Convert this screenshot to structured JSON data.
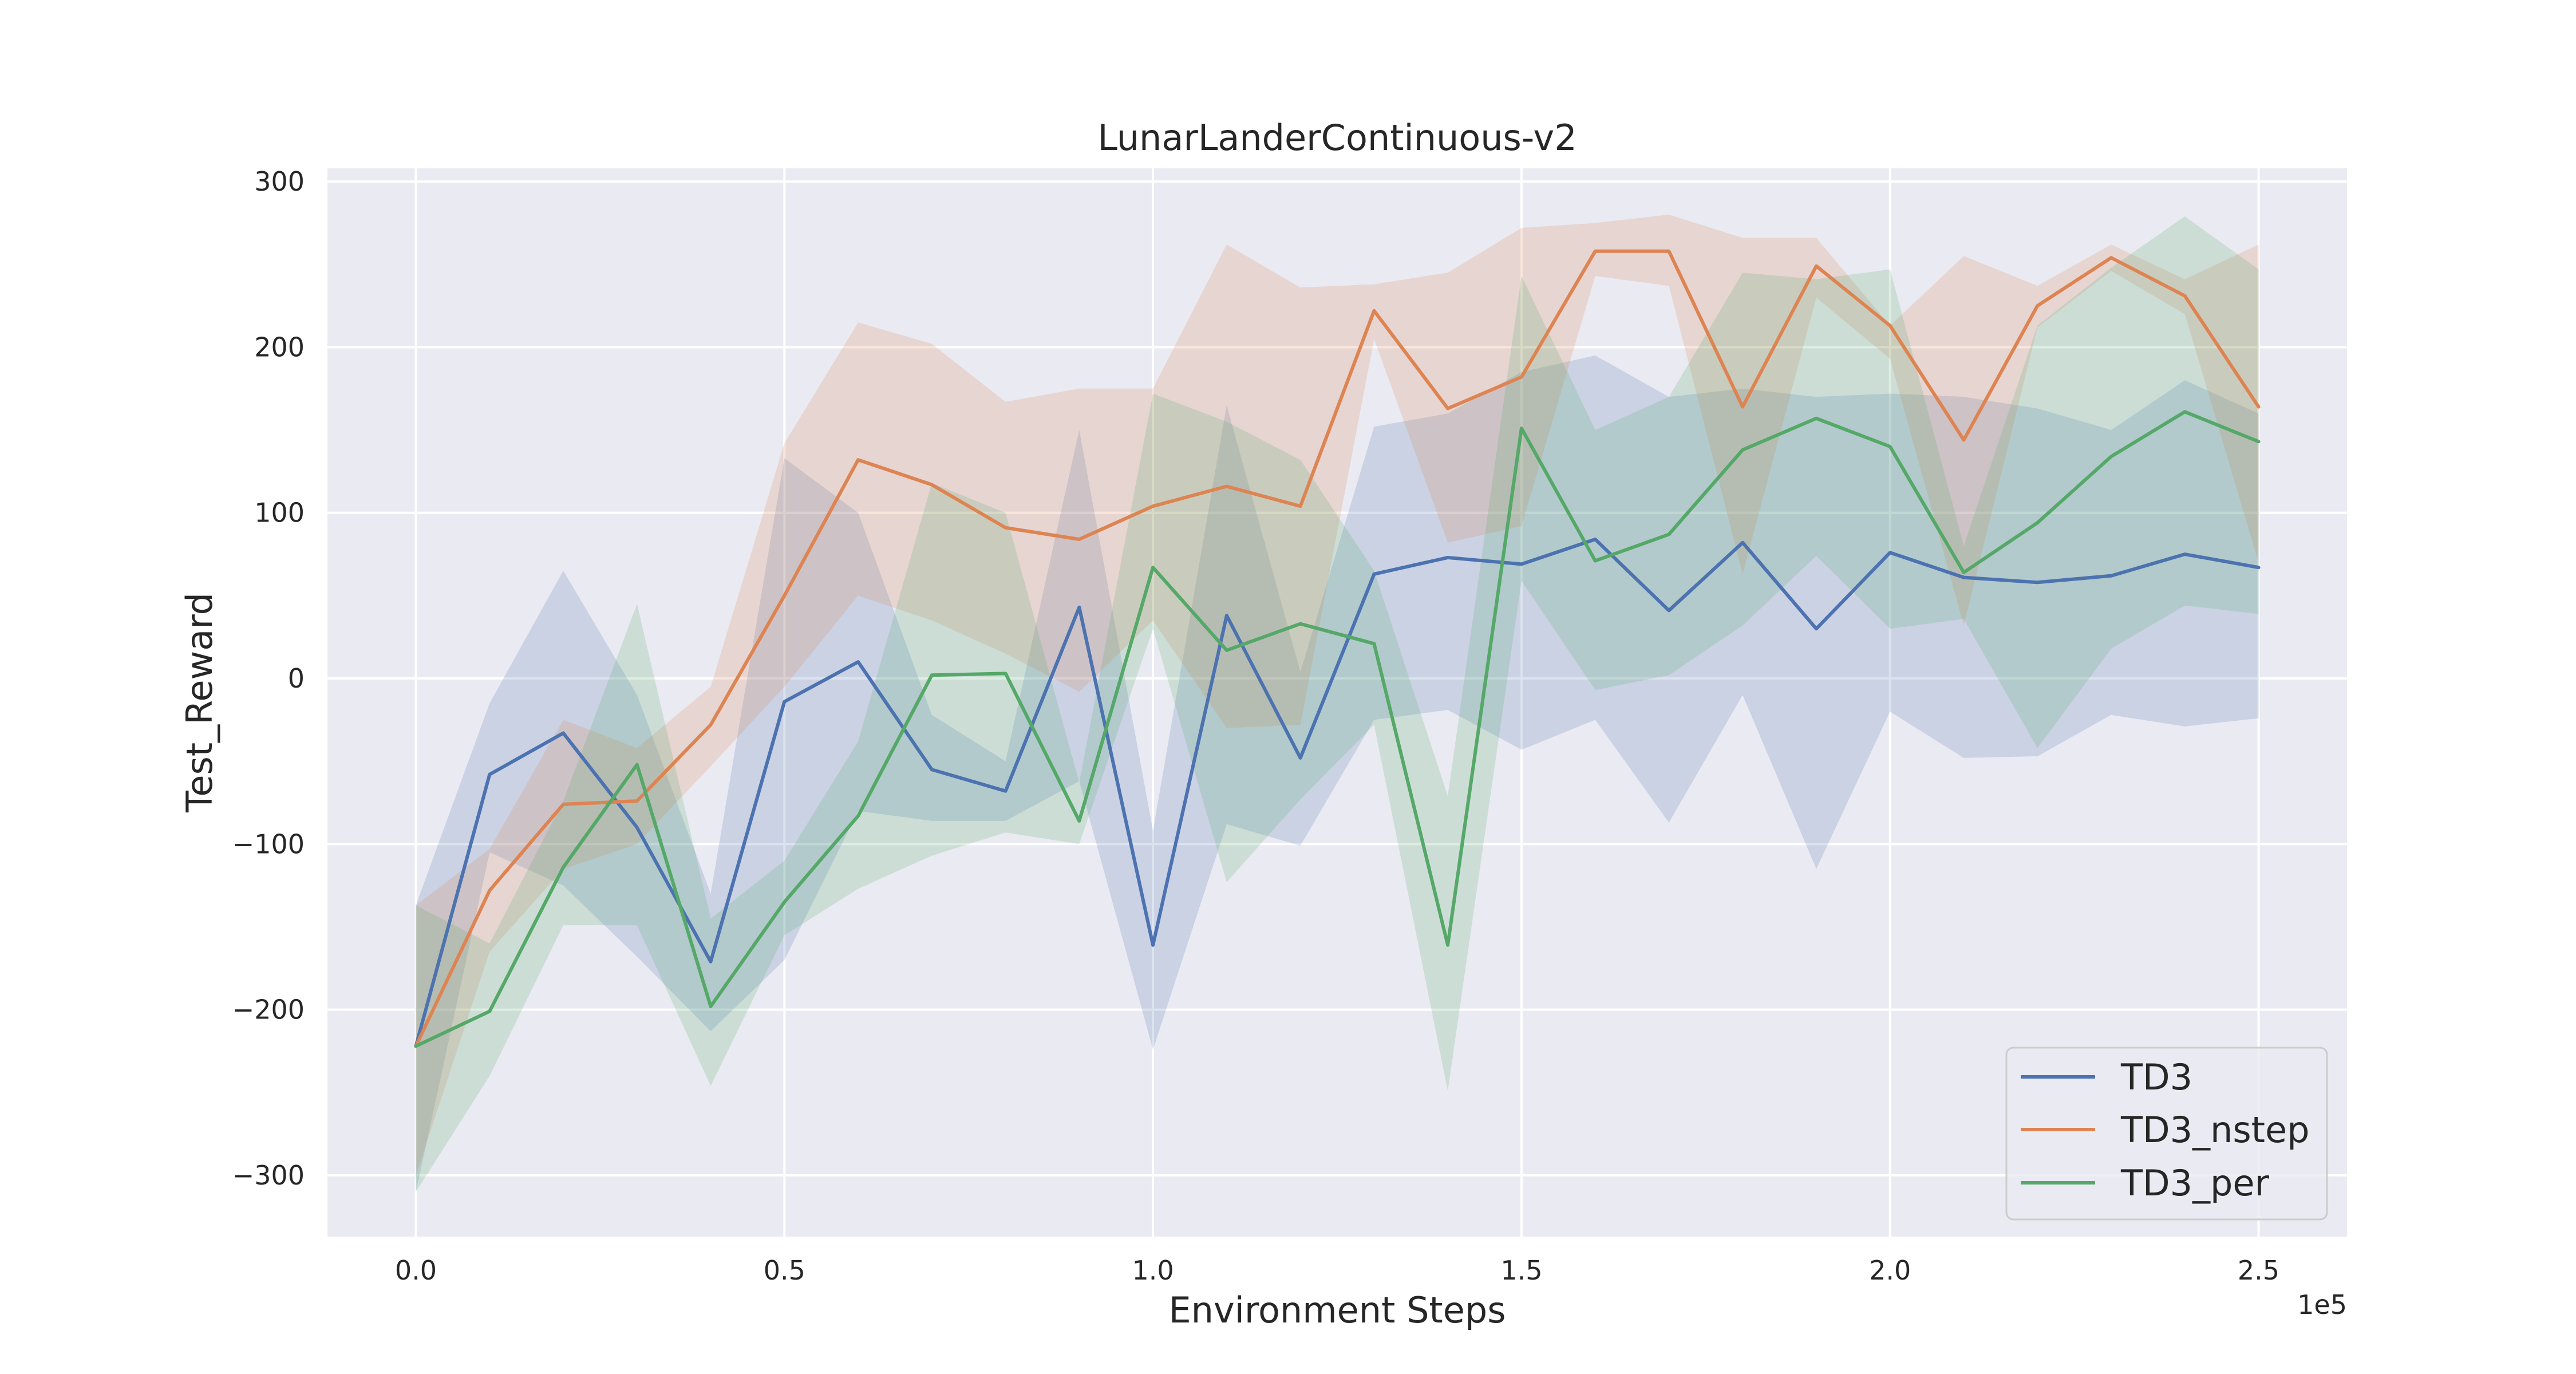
{
  "chart_data": {
    "type": "line",
    "title": "LunarLanderContinuous-v2",
    "xlabel": "Environment Steps",
    "ylabel": "Test_Reward",
    "x_offset_label": "1e5",
    "xlim": [
      -0.12,
      2.62
    ],
    "ylim": [
      -337,
      308
    ],
    "xticks": [
      0,
      0.5,
      1.0,
      1.5,
      2.0,
      2.5
    ],
    "xtick_labels": [
      "0.0",
      "0.5",
      "1.0",
      "1.5",
      "2.0",
      "2.5"
    ],
    "yticks": [
      -300,
      -200,
      -100,
      0,
      100,
      200,
      300
    ],
    "ytick_labels": [
      "−300",
      "−200",
      "−100",
      "0",
      "100",
      "200",
      "300"
    ],
    "grid": true,
    "legend_position": "bottom-right",
    "x": [
      0,
      0.1,
      0.2,
      0.3,
      0.4,
      0.5,
      0.6,
      0.7,
      0.8,
      0.9,
      1.0,
      1.1,
      1.2,
      1.3,
      1.4,
      1.5,
      1.6,
      1.7,
      1.8,
      1.9,
      2.0,
      2.1,
      2.2,
      2.3,
      2.4,
      2.5
    ],
    "series": [
      {
        "name": "TD3",
        "color": "#4c72b0",
        "values": [
          -222,
          -58,
          -33,
          -90,
          -171,
          -14,
          10,
          -55,
          -68,
          43,
          -161,
          38,
          -48,
          63,
          73,
          69,
          84,
          41,
          82,
          30,
          76,
          61,
          58,
          62,
          75,
          67
        ],
        "lower": [
          -310,
          -105,
          -125,
          -168,
          -213,
          -170,
          -80,
          -86,
          -86,
          -62,
          -224,
          -88,
          -101,
          -25,
          -19,
          -43,
          -25,
          -87,
          -10,
          -115,
          -20,
          -48,
          -47,
          -22,
          -29,
          -24
        ],
        "upper": [
          -137,
          -15,
          65,
          -10,
          -130,
          133,
          100,
          -22,
          -50,
          150,
          -92,
          165,
          4,
          152,
          160,
          185,
          195,
          170,
          175,
          170,
          172,
          170,
          163,
          150,
          180,
          160
        ]
      },
      {
        "name": "TD3_nstep",
        "color": "#dd8452",
        "values": [
          -222,
          -128,
          -76,
          -74,
          -28,
          50,
          132,
          117,
          91,
          84,
          104,
          116,
          104,
          222,
          163,
          182,
          258,
          258,
          164,
          249,
          213,
          144,
          225,
          254,
          231,
          164
        ],
        "lower": [
          -300,
          -165,
          -115,
          -100,
          -53,
          -5,
          50,
          35,
          15,
          -8,
          35,
          -30,
          -28,
          205,
          82,
          92,
          243,
          237,
          63,
          230,
          193,
          32,
          212,
          246,
          220,
          70
        ],
        "upper": [
          -137,
          -103,
          -25,
          -42,
          -5,
          142,
          215,
          202,
          167,
          175,
          175,
          262,
          236,
          238,
          245,
          272,
          275,
          280,
          266,
          266,
          213,
          255,
          237,
          262,
          241,
          262
        ]
      },
      {
        "name": "TD3_per",
        "color": "#55a868",
        "values": [
          -222,
          -201,
          -114,
          -52,
          -198,
          -135,
          -83,
          2,
          3,
          -86,
          67,
          17,
          33,
          21,
          -161,
          151,
          71,
          87,
          138,
          157,
          140,
          64,
          94,
          134,
          161,
          143
        ],
        "lower": [
          -310,
          -240,
          -149,
          -149,
          -246,
          -155,
          -127,
          -107,
          -93,
          -100,
          30,
          -123,
          -73,
          -28,
          -249,
          59,
          -7,
          2,
          32,
          74,
          30,
          36,
          -42,
          18,
          44,
          39
        ],
        "upper": [
          -137,
          -160,
          -74,
          45,
          -145,
          -110,
          -38,
          118,
          100,
          -63,
          172,
          155,
          132,
          65,
          -71,
          243,
          150,
          170,
          245,
          241,
          247,
          80,
          213,
          248,
          279,
          247
        ]
      }
    ]
  }
}
